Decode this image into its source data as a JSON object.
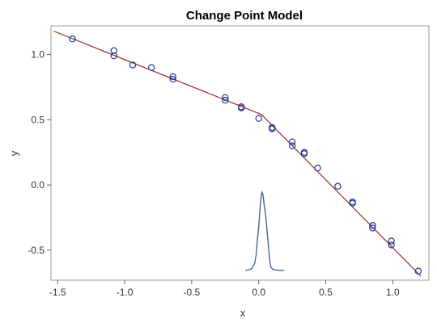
{
  "chart_data": {
    "type": "scatter",
    "title": "Change Point Model",
    "xlabel": "x",
    "ylabel": "y",
    "xlim": [
      -1.55,
      1.27
    ],
    "ylim": [
      -0.73,
      1.22
    ],
    "x_ticks": [
      -1.5,
      -1.0,
      -0.5,
      0.0,
      0.5,
      1.0
    ],
    "x_tick_labels": [
      "-1.5",
      "-1.0",
      "-0.5",
      "0.0",
      "0.5",
      "1.0"
    ],
    "y_ticks": [
      -0.5,
      0.0,
      0.5,
      1.0
    ],
    "y_tick_labels": [
      "-0.5",
      "0.0",
      "0.5",
      "1.0"
    ],
    "grid": false,
    "colors": {
      "points": "#1f3a93",
      "fit_line": "#a52a2a",
      "density": "#3a5a9a",
      "frame": "#999999"
    },
    "points": [
      {
        "x": -1.39,
        "y": 1.12
      },
      {
        "x": -1.08,
        "y": 1.03
      },
      {
        "x": -1.08,
        "y": 0.99
      },
      {
        "x": -0.94,
        "y": 0.92
      },
      {
        "x": -0.8,
        "y": 0.9
      },
      {
        "x": -0.64,
        "y": 0.83
      },
      {
        "x": -0.64,
        "y": 0.81
      },
      {
        "x": -0.25,
        "y": 0.67
      },
      {
        "x": -0.25,
        "y": 0.65
      },
      {
        "x": -0.13,
        "y": 0.6
      },
      {
        "x": -0.13,
        "y": 0.59
      },
      {
        "x": 0.0,
        "y": 0.51
      },
      {
        "x": 0.1,
        "y": 0.44
      },
      {
        "x": 0.1,
        "y": 0.43
      },
      {
        "x": 0.25,
        "y": 0.33
      },
      {
        "x": 0.25,
        "y": 0.3
      },
      {
        "x": 0.34,
        "y": 0.25
      },
      {
        "x": 0.34,
        "y": 0.24
      },
      {
        "x": 0.44,
        "y": 0.13
      },
      {
        "x": 0.59,
        "y": -0.01
      },
      {
        "x": 0.7,
        "y": -0.13
      },
      {
        "x": 0.7,
        "y": -0.14
      },
      {
        "x": 0.85,
        "y": -0.31
      },
      {
        "x": 0.85,
        "y": -0.33
      },
      {
        "x": 0.99,
        "y": -0.43
      },
      {
        "x": 0.99,
        "y": -0.46
      },
      {
        "x": 1.19,
        "y": -0.66
      }
    ],
    "fit_line": [
      {
        "x": -1.53,
        "y": 1.18
      },
      {
        "x": 0.02,
        "y": 0.54
      },
      {
        "x": 1.21,
        "y": -0.7
      }
    ],
    "density_curve": [
      {
        "x": -0.1,
        "y": -0.655
      },
      {
        "x": -0.07,
        "y": -0.65
      },
      {
        "x": -0.05,
        "y": -0.64
      },
      {
        "x": -0.03,
        "y": -0.6
      },
      {
        "x": -0.02,
        "y": -0.54
      },
      {
        "x": -0.01,
        "y": -0.42
      },
      {
        "x": 0.0,
        "y": -0.32
      },
      {
        "x": 0.005,
        "y": -0.25
      },
      {
        "x": 0.01,
        "y": -0.18
      },
      {
        "x": 0.015,
        "y": -0.12
      },
      {
        "x": 0.02,
        "y": -0.08
      },
      {
        "x": 0.025,
        "y": -0.055
      },
      {
        "x": 0.03,
        "y": -0.07
      },
      {
        "x": 0.035,
        "y": -0.1
      },
      {
        "x": 0.04,
        "y": -0.15
      },
      {
        "x": 0.05,
        "y": -0.22
      },
      {
        "x": 0.06,
        "y": -0.32
      },
      {
        "x": 0.07,
        "y": -0.44
      },
      {
        "x": 0.08,
        "y": -0.56
      },
      {
        "x": 0.09,
        "y": -0.63
      },
      {
        "x": 0.11,
        "y": -0.65
      },
      {
        "x": 0.15,
        "y": -0.655
      },
      {
        "x": 0.19,
        "y": -0.655
      }
    ]
  }
}
